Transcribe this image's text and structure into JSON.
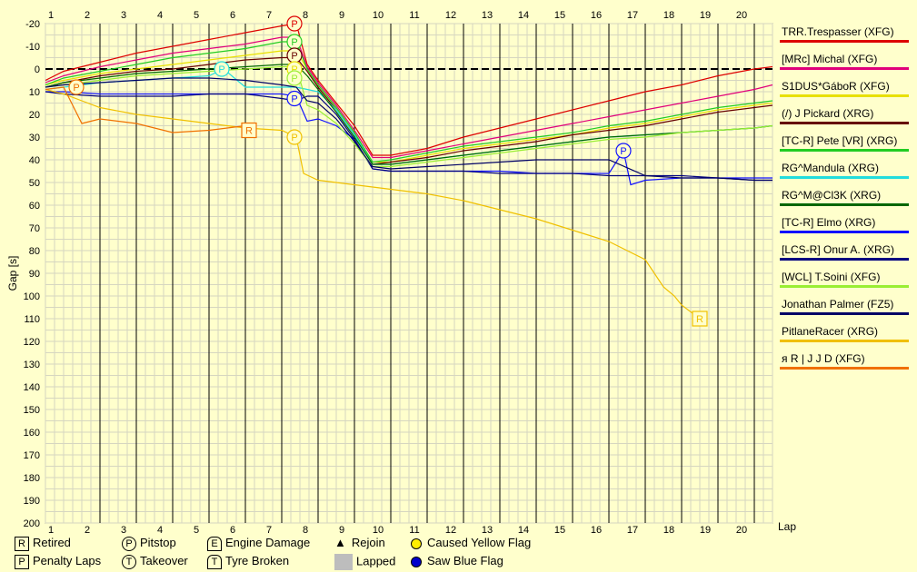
{
  "chart_data": {
    "type": "line",
    "ylabel": "Gap [s]",
    "xlabel": "Lap",
    "x_ticks": [
      1,
      2,
      3,
      4,
      5,
      6,
      7,
      8,
      9,
      10,
      11,
      12,
      13,
      14,
      15,
      16,
      17,
      18,
      19,
      20
    ],
    "ylim": [
      -20,
      200
    ],
    "y_ticks": [
      -20,
      -10,
      0,
      10,
      20,
      30,
      40,
      50,
      60,
      70,
      80,
      90,
      100,
      110,
      120,
      130,
      140,
      150,
      160,
      170,
      180,
      190,
      200
    ],
    "series": [
      {
        "name": "TRR.Trespasser (XFG)",
        "color": "#dd0000",
        "x": [
          0.5,
          1,
          2,
          3,
          4,
          5,
          6,
          7,
          7.4,
          7.7,
          8,
          8.5,
          9,
          9.5,
          10,
          11,
          12,
          13,
          14,
          15,
          16,
          17,
          18,
          19,
          20,
          20.5
        ],
        "y": [
          5,
          1,
          -3,
          -7,
          -10,
          -13,
          -16,
          -19,
          -20,
          -2,
          5,
          15,
          25,
          38,
          38,
          35,
          30,
          26,
          22,
          18,
          14,
          10,
          7,
          3,
          0,
          -1
        ]
      },
      {
        "name": "[MRc] Michal (XFG)",
        "color": "#e0007a",
        "x": [
          0.5,
          1,
          2,
          3,
          4,
          5,
          6,
          7,
          7.4,
          7.7,
          8,
          8.5,
          9,
          9.5,
          10,
          11,
          12,
          13,
          14,
          15,
          16,
          17,
          18,
          19,
          20,
          20.5
        ],
        "y": [
          6,
          3,
          -1,
          -4,
          -7,
          -9,
          -11,
          -14,
          -14,
          -1,
          6,
          16,
          27,
          39,
          39,
          36,
          33,
          30,
          27,
          24,
          21,
          18,
          15,
          12,
          9,
          7
        ]
      },
      {
        "name": "S1DUS*GáboR (XFG)",
        "color": "#e8e000",
        "x": [
          0.5,
          1,
          2,
          3,
          4,
          5,
          6,
          7,
          7.4,
          7.7,
          8,
          8.5,
          9,
          9.5,
          10,
          11,
          12,
          13,
          14,
          15,
          16,
          17,
          18,
          19,
          20,
          20.5
        ],
        "y": [
          7,
          5,
          2,
          0,
          -2,
          -4,
          -6,
          -8,
          -8,
          0,
          7,
          17,
          28,
          41,
          41,
          38,
          35,
          33,
          31,
          29,
          26,
          24,
          21,
          18,
          16,
          15
        ]
      },
      {
        "name": "(/) J Pickard (XRG)",
        "color": "#660000",
        "x": [
          0.5,
          1,
          2,
          3,
          4,
          5,
          6,
          7,
          7.4,
          7.7,
          8,
          8.5,
          9,
          9.5,
          10,
          11,
          12,
          13,
          14,
          15,
          16,
          17,
          18,
          19,
          20,
          20.5
        ],
        "y": [
          8,
          6,
          3,
          1,
          0,
          -2,
          -4,
          -5,
          -5,
          1,
          8,
          18,
          29,
          42,
          41,
          39,
          36,
          34,
          32,
          29,
          27,
          25,
          22,
          19,
          17,
          16
        ]
      },
      {
        "name": "[TC-R] Pete [VR] (XRG)",
        "color": "#22cc22",
        "x": [
          0.5,
          1,
          2,
          3,
          4,
          5,
          6,
          7,
          7.4,
          7.7,
          8,
          8.5,
          9,
          9.5,
          10,
          11,
          12,
          13,
          14,
          15,
          16,
          17,
          18,
          19,
          20,
          20.5
        ],
        "y": [
          7,
          4,
          1,
          -2,
          -5,
          -7,
          -9,
          -12,
          -12,
          0,
          7,
          17,
          28,
          41,
          40,
          37,
          34,
          32,
          30,
          28,
          25,
          23,
          20,
          17,
          15,
          14
        ]
      },
      {
        "name": "RG^Mandula (XRG)",
        "color": "#22dddd",
        "x": [
          0.5,
          1,
          2,
          3,
          4,
          5,
          5.4,
          6,
          7,
          7.4,
          7.7,
          8,
          8.5,
          9,
          9.5,
          10,
          11,
          12,
          13,
          14,
          15,
          16,
          17,
          18,
          19,
          20,
          20.5
        ],
        "y": [
          9,
          8,
          6,
          5,
          4,
          3,
          0,
          8,
          8,
          8,
          9,
          10,
          18,
          29,
          42,
          42,
          40,
          38,
          36,
          34,
          32,
          30,
          29,
          28,
          27,
          26,
          25
        ]
      },
      {
        "name": "RG^M@Cl3K (XRG)",
        "color": "#006600",
        "x": [
          0.5,
          1,
          2,
          3,
          4,
          5,
          6,
          7,
          7.4,
          7.7,
          8,
          8.5,
          9,
          9.5,
          10,
          11,
          12,
          13,
          14,
          15,
          16,
          17,
          18,
          19,
          20,
          20.5
        ],
        "y": [
          8,
          6,
          4,
          2,
          1,
          0,
          -1,
          -2,
          -2,
          3,
          9,
          19,
          30,
          42,
          42,
          40,
          38,
          36,
          34,
          32,
          30,
          29,
          28,
          27,
          26,
          25
        ]
      },
      {
        "name": "[TC-R] Elmo (XRG)",
        "color": "#1010ff",
        "x": [
          0.5,
          1,
          2,
          3,
          4,
          5,
          6,
          7,
          7.4,
          7.7,
          8,
          8.5,
          9,
          9.5,
          10,
          11,
          12,
          13,
          14,
          15,
          16,
          16.4,
          16.6,
          17,
          18,
          19,
          20,
          20.5
        ],
        "y": [
          10,
          10,
          11,
          11,
          11,
          11,
          11,
          11,
          12,
          23,
          22,
          25,
          31,
          44,
          45,
          45,
          45,
          45,
          46,
          46,
          46,
          36,
          51,
          49,
          48,
          48,
          48,
          48
        ]
      },
      {
        "name": "[LCS-R] Onur A. (XRG)",
        "color": "#000080",
        "x": [
          0.5,
          1,
          2,
          3,
          4,
          5,
          6,
          7,
          7.4,
          7.7,
          8,
          8.5,
          9,
          9.5,
          10,
          11,
          12,
          13,
          14,
          15,
          16,
          17,
          18,
          19,
          20,
          20.5
        ],
        "y": [
          10,
          11,
          12,
          12,
          12,
          11,
          11,
          13,
          14,
          12,
          12,
          20,
          31,
          44,
          45,
          45,
          45,
          46,
          46,
          46,
          47,
          47,
          47,
          48,
          49,
          49
        ]
      },
      {
        "name": "[WCL] T.Soini (XFG)",
        "color": "#99ee33",
        "x": [
          0.5,
          1,
          2,
          3,
          4,
          5,
          6,
          7,
          7.4,
          7.7,
          8,
          8.5,
          9,
          9.5,
          10,
          11,
          12,
          13,
          14,
          15,
          16,
          17,
          18,
          19,
          20,
          20.5
        ],
        "y": [
          8,
          7,
          5,
          3,
          2,
          1,
          0,
          -1,
          -1,
          16,
          18,
          24,
          33,
          43,
          43,
          41,
          39,
          37,
          35,
          33,
          31,
          30,
          28,
          27,
          26,
          25
        ]
      },
      {
        "name": "Jonathan Palmer (FZ5)",
        "color": "#000066",
        "x": [
          0.5,
          1,
          2,
          3,
          4,
          5,
          6,
          7,
          7.4,
          7.7,
          8,
          8.5,
          9,
          9.5,
          10,
          11,
          12,
          13,
          14,
          15,
          16,
          17,
          18,
          19,
          20,
          20.5
        ],
        "y": [
          8,
          7,
          6,
          5,
          4,
          4,
          5,
          7,
          8,
          14,
          15,
          22,
          32,
          43,
          44,
          43,
          42,
          41,
          40,
          40,
          40,
          47,
          48,
          48,
          49,
          49
        ]
      },
      {
        "name": "PitlaneRacer (XRG)",
        "color": "#f0c000",
        "x": [
          0.5,
          1,
          1.5,
          2,
          3,
          4,
          5,
          6,
          7,
          7.4,
          7.6,
          8,
          9,
          10,
          11,
          12,
          13,
          14,
          15,
          16,
          17,
          17.5,
          17.8,
          18,
          18.5
        ],
        "y": [
          9,
          11,
          14,
          17,
          20,
          22,
          24,
          26,
          27,
          30,
          46,
          49,
          51,
          53,
          55,
          58,
          62,
          66,
          71,
          76,
          84,
          96,
          100,
          104,
          110
        ]
      },
      {
        "name": "я R | J J D (XFG)",
        "color": "#f07000",
        "x": [
          0.5,
          1,
          1.5,
          2,
          3,
          4,
          5,
          6,
          6.1
        ],
        "y": [
          9,
          8,
          24,
          22,
          24,
          28,
          27,
          25,
          27
        ]
      }
    ],
    "markers": [
      {
        "symbol": "P",
        "x": 1.35,
        "y": 8,
        "color": "#f07000"
      },
      {
        "symbol": "P",
        "x": 5.35,
        "y": 0,
        "color": "#22dddd"
      },
      {
        "symbol": "R",
        "x": 6.1,
        "y": 27,
        "color": "#f07000"
      },
      {
        "symbol": "P",
        "x": 7.35,
        "y": -20,
        "color": "#dd0000"
      },
      {
        "symbol": "P",
        "x": 7.35,
        "y": -12,
        "color": "#22cc22"
      },
      {
        "symbol": "P",
        "x": 7.35,
        "y": -6,
        "color": "#660000"
      },
      {
        "symbol": "P",
        "x": 7.35,
        "y": 0,
        "color": "#e8e000"
      },
      {
        "symbol": "P",
        "x": 7.35,
        "y": 4,
        "color": "#99ee33"
      },
      {
        "symbol": "P",
        "x": 7.35,
        "y": 13,
        "color": "#1010ff"
      },
      {
        "symbol": "P",
        "x": 7.35,
        "y": 30,
        "color": "#f0c000"
      },
      {
        "symbol": "P",
        "x": 16.4,
        "y": 36,
        "color": "#1010ff"
      },
      {
        "symbol": "R",
        "x": 18.5,
        "y": 110,
        "color": "#f0c000"
      }
    ],
    "key": [
      {
        "symbol": "R",
        "shape": "square",
        "label": "Retired"
      },
      {
        "symbol": "P",
        "shape": "square",
        "label": "Penalty Laps"
      },
      {
        "symbol": "P",
        "shape": "circle",
        "label": "Pitstop"
      },
      {
        "symbol": "T",
        "shape": "circle",
        "label": "Takeover"
      },
      {
        "symbol": "E",
        "shape": "house",
        "label": "Engine Damage"
      },
      {
        "symbol": "T",
        "shape": "house",
        "label": "Tyre Broken"
      },
      {
        "symbol": "▲",
        "shape": "glyph",
        "label": "Rejoin"
      },
      {
        "symbol": "",
        "shape": "box",
        "label": "Lapped"
      },
      {
        "symbol": "",
        "shape": "yellow-dot",
        "label": "Caused Yellow Flag"
      },
      {
        "symbol": "",
        "shape": "blue-dot",
        "label": "Saw Blue Flag"
      }
    ]
  }
}
